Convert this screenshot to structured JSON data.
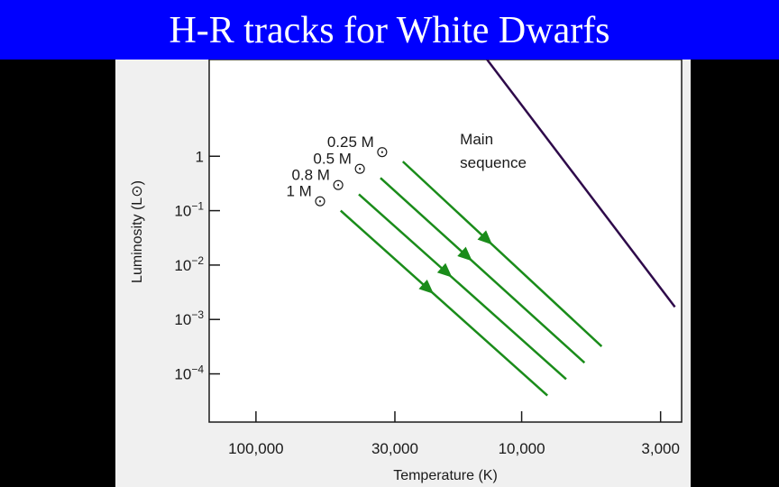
{
  "slide": {
    "title": "H-R tracks for White Dwarfs"
  },
  "colors": {
    "title_background": "#0000ff",
    "title_text": "#ffffff",
    "page_background": "#000000",
    "panel_background": "#f0f0f0",
    "plot_background": "#ffffff",
    "track_color": "#1a8c1a",
    "main_sequence_color": "#2e0a4a"
  },
  "chart_data": {
    "type": "line",
    "title": "",
    "xlabel": "Temperature (K)",
    "ylabel": "Luminosity (L⊙)",
    "x_scale": "log",
    "x_reversed": true,
    "xlim": [
      150000,
      2500
    ],
    "y_scale": "log",
    "ylim": [
      1.3e-05,
      60
    ],
    "x_ticks": [
      {
        "value": 100000,
        "label": "100,000"
      },
      {
        "value": 30000,
        "label": "30,000"
      },
      {
        "value": 10000,
        "label": "10,000"
      },
      {
        "value": 3000,
        "label": "3,000"
      }
    ],
    "y_ticks": [
      {
        "value": 1,
        "label": "1",
        "exp": ""
      },
      {
        "value": 0.1,
        "label": "10",
        "exp": "−1"
      },
      {
        "value": 0.01,
        "label": "10",
        "exp": "−2"
      },
      {
        "value": 0.001,
        "label": "10",
        "exp": "−3"
      },
      {
        "value": 0.0001,
        "label": "10",
        "exp": "−4"
      }
    ],
    "grid": false,
    "legend": "none",
    "series": [
      {
        "name": "0.25 M",
        "symbol": "⊙",
        "x": [
          28000,
          5000
        ],
        "y": [
          0.8,
          0.00032
        ],
        "arrow_at": 0.45
      },
      {
        "name": "0.5 M",
        "symbol": "⊙",
        "x": [
          34000,
          5800
        ],
        "y": [
          0.4,
          0.00016
        ],
        "arrow_at": 0.45
      },
      {
        "name": "0.8 M",
        "symbol": "⊙",
        "x": [
          41000,
          6800
        ],
        "y": [
          0.2,
          8e-05
        ],
        "arrow_at": 0.45
      },
      {
        "name": "1 M",
        "symbol": "⊙",
        "x": [
          48000,
          8000
        ],
        "y": [
          0.1,
          4e-05
        ],
        "arrow_at": 0.45
      }
    ],
    "main_sequence": {
      "name": "Main sequence",
      "name_lines": [
        "Main",
        "sequence"
      ],
      "x": [
        13500,
        2650
      ],
      "y": [
        60,
        0.0017
      ]
    }
  }
}
